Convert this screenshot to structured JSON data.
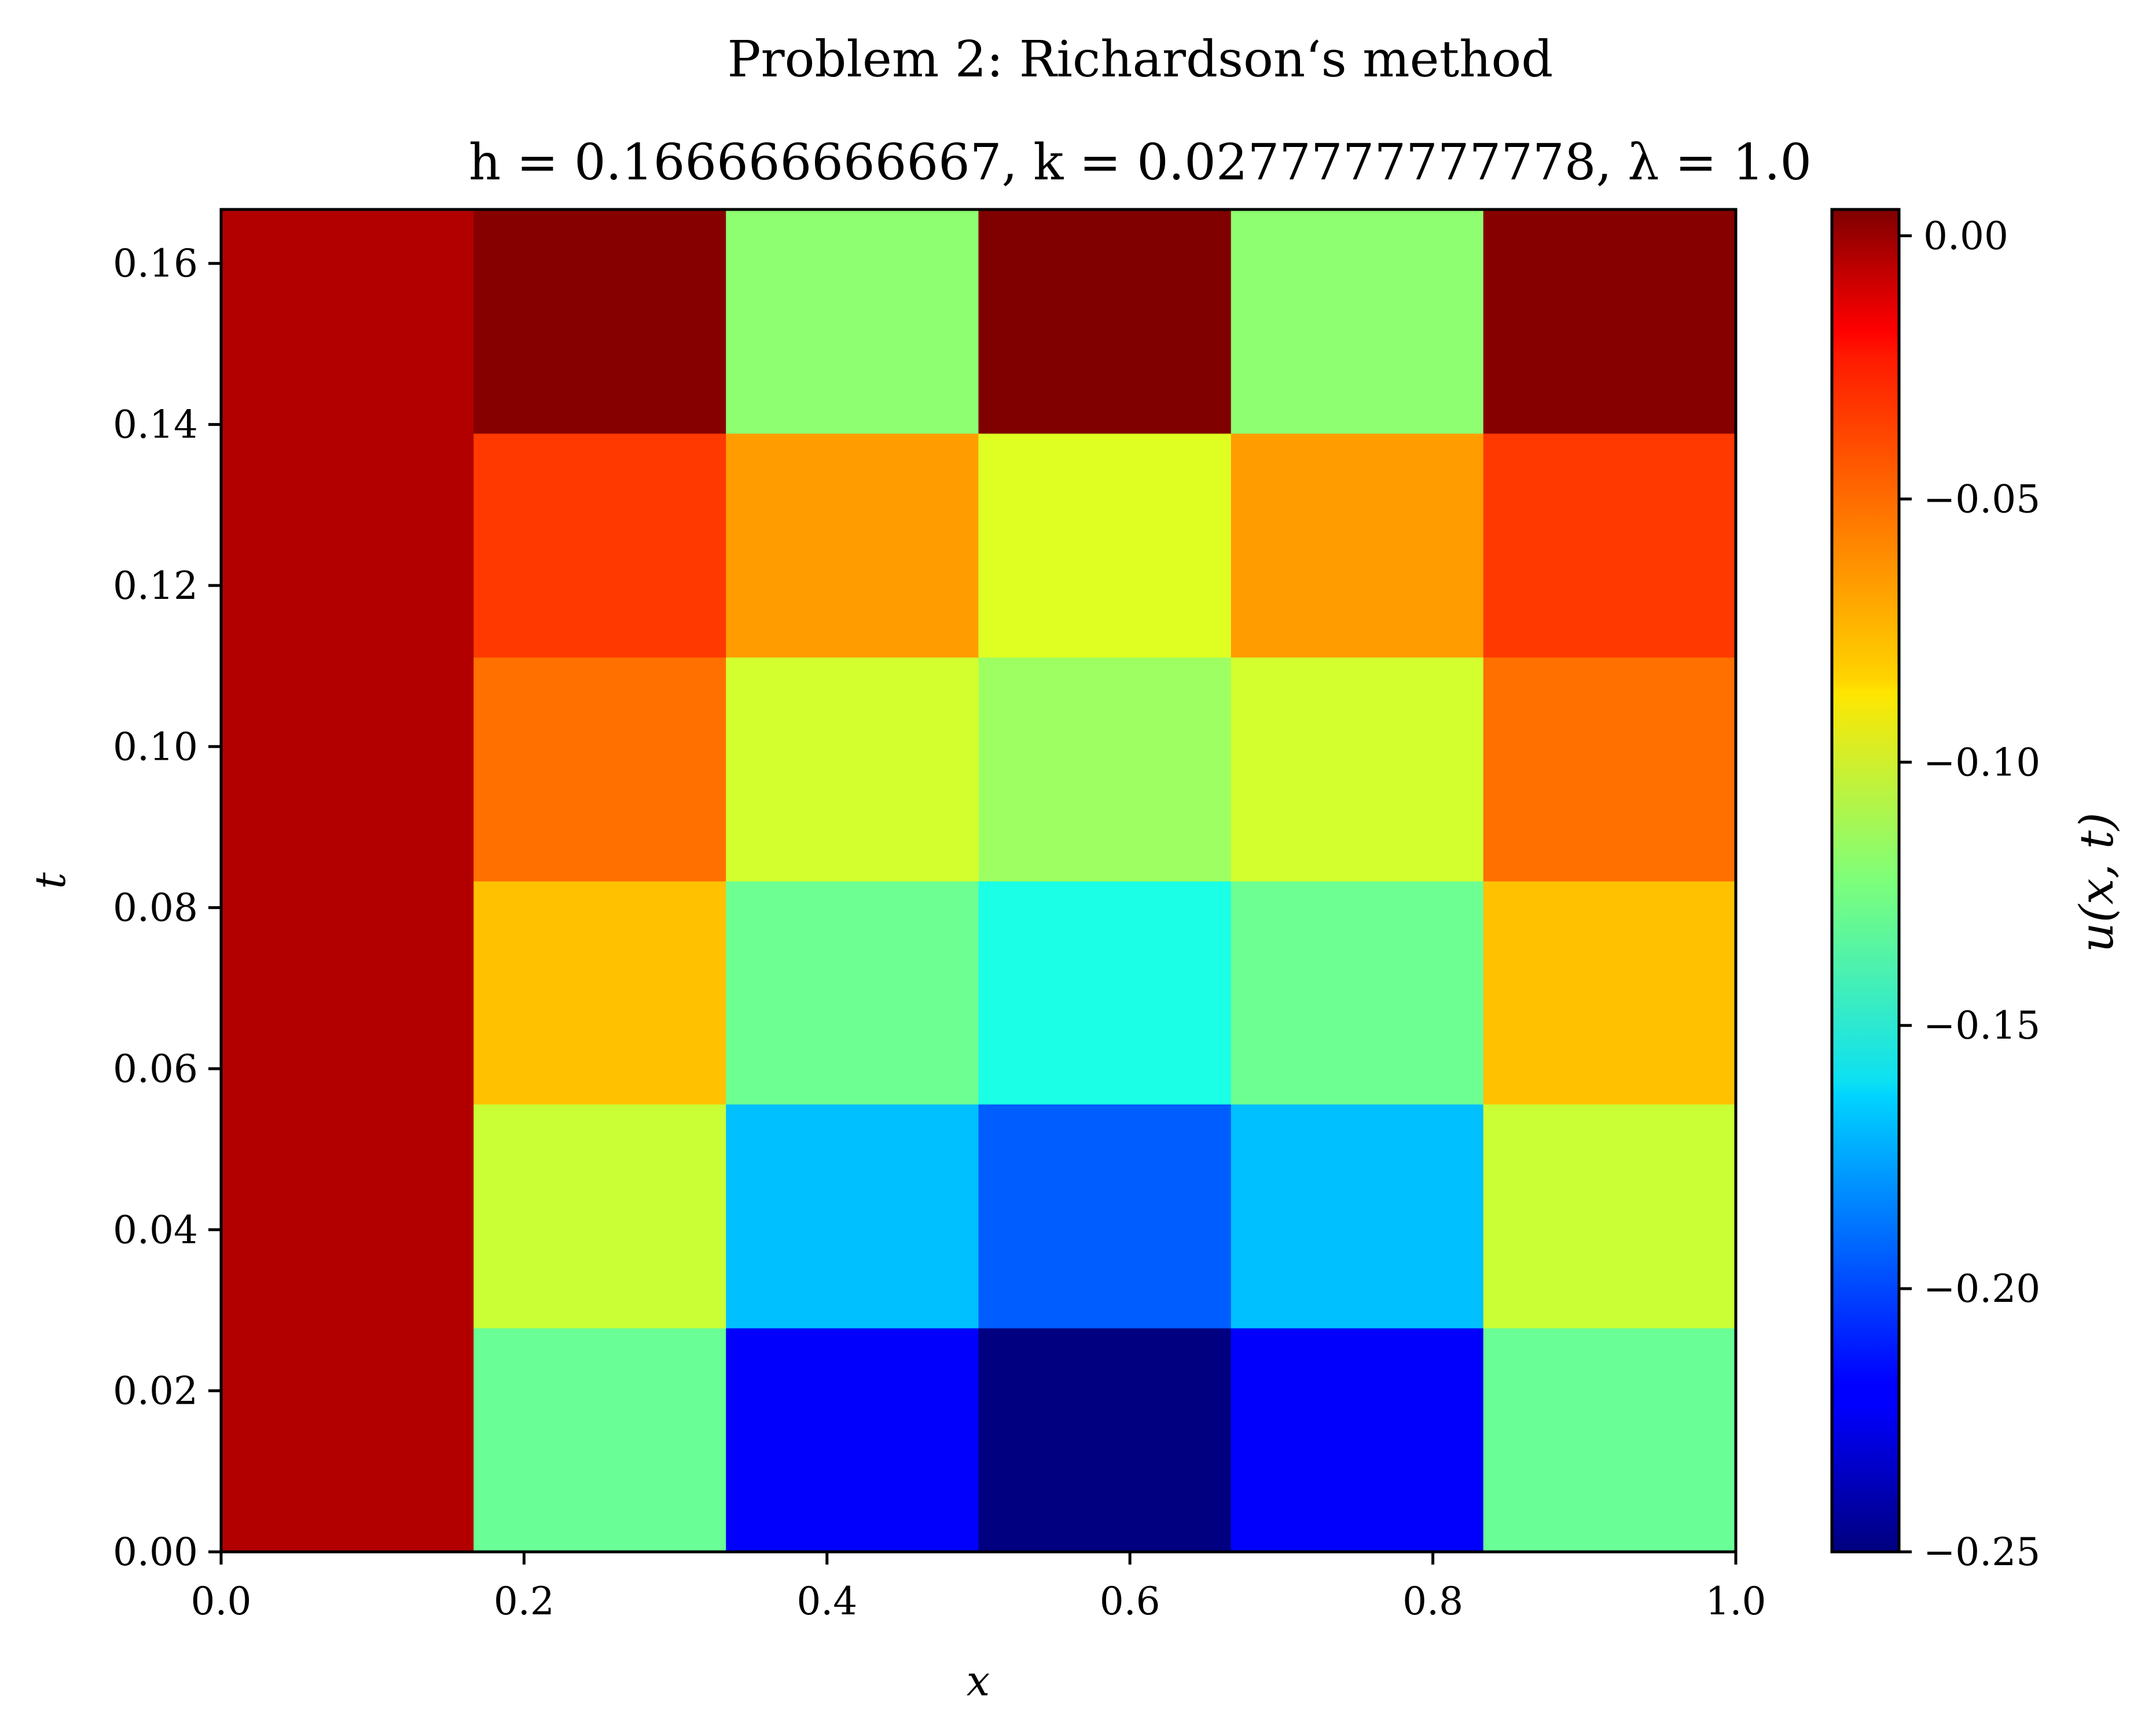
{
  "chart_data": {
    "type": "heatmap",
    "title": "Problem 2: Richardson‘s method",
    "subtitle": "h = 0.166666666667, k = 0.0277777777778, λ = 1.0",
    "xlabel": "x",
    "ylabel": "t",
    "colorbar_label": "u(x, t)",
    "colormap": "jet",
    "xlim": [
      0.0,
      1.0
    ],
    "ylim": [
      0.0,
      0.1667
    ],
    "clim": [
      -0.25,
      0.005
    ],
    "x_edges": [
      0.0,
      0.1667,
      0.3333,
      0.5,
      0.6667,
      0.8333,
      1.0
    ],
    "t_edges": [
      0.0,
      0.0278,
      0.0556,
      0.0833,
      0.1111,
      0.1389,
      0.1667
    ],
    "x_ticks": [
      "0.0",
      "0.2",
      "0.4",
      "0.6",
      "0.8",
      "1.0"
    ],
    "y_ticks": [
      "0.00",
      "0.02",
      "0.04",
      "0.06",
      "0.08",
      "0.10",
      "0.12",
      "0.14",
      "0.16"
    ],
    "colorbar_ticks": [
      "0.00",
      "−0.05",
      "−0.10",
      "−0.15",
      "−0.20",
      "−0.25"
    ],
    "values": [
      [
        -0.0075,
        -0.128,
        -0.219,
        -0.25,
        -0.219,
        -0.128
      ],
      [
        -0.0075,
        -0.104,
        -0.17,
        -0.195,
        -0.17,
        -0.104
      ],
      [
        -0.0075,
        -0.075,
        -0.127,
        -0.148,
        -0.127,
        -0.075
      ],
      [
        -0.0075,
        -0.055,
        -0.102,
        -0.115,
        -0.102,
        -0.055
      ],
      [
        -0.0075,
        -0.041,
        -0.066,
        -0.099,
        -0.066,
        -0.041
      ],
      [
        -0.0075,
        0.003,
        -0.119,
        0.005,
        -0.119,
        0.003
      ]
    ]
  }
}
